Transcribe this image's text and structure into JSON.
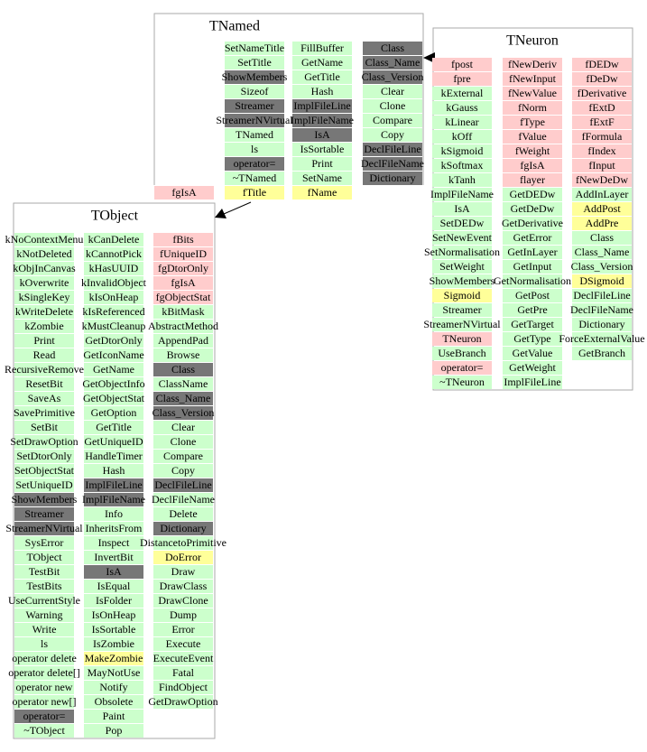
{
  "classes": [
    {
      "name": "TNamed",
      "columns": [
        [
          {
            "color": "#ccffcc",
            "items": [
              "SetNameTitle",
              "SetTitle"
            ]
          },
          {
            "color": "#777777",
            "items": [
              "ShowMembers"
            ]
          },
          {
            "color": "#ccffcc",
            "items": [
              "Sizeof"
            ]
          },
          {
            "color": "#777777",
            "items": [
              "Streamer",
              "StreamerNVirtual"
            ]
          },
          {
            "color": "#ccffcc",
            "items": [
              "TNamed",
              "ls"
            ]
          },
          {
            "color": "#777777",
            "items": [
              "operator="
            ]
          },
          {
            "color": "#ccffcc",
            "items": [
              "~TNamed"
            ]
          },
          {
            "color": "#ffff99",
            "items": [
              "fTitle"
            ]
          }
        ],
        [
          {
            "color": "#ccffcc",
            "items": [
              "FillBuffer",
              "GetName",
              "GetTitle",
              "Hash"
            ]
          },
          {
            "color": "#777777",
            "items": [
              "ImplFileLine",
              "ImplFileName",
              "IsA"
            ]
          },
          {
            "color": "#ccffcc",
            "items": [
              "IsSortable",
              "Print",
              "SetName"
            ]
          },
          {
            "color": "#ffff99",
            "items": [
              "fName"
            ]
          }
        ],
        [
          {
            "color": "#777777",
            "items": [
              "Class",
              "Class_Name",
              "Class_Version"
            ]
          },
          {
            "color": "#ccffcc",
            "items": [
              "Clear",
              "Clone",
              "Compare",
              "Copy"
            ]
          },
          {
            "color": "#777777",
            "items": [
              "DeclFileLine",
              "DeclFileName",
              "Dictionary"
            ]
          }
        ],
        [
          {
            "color": "#ffcccc",
            "items": [
              "fgIsA"
            ]
          }
        ]
      ]
    },
    {
      "name": "TNeuron",
      "columns": [
        [
          {
            "color": "#ffcccc",
            "items": [
              "fpost",
              "fpre"
            ]
          },
          {
            "color": "#ccffcc",
            "items": [
              "kExternal",
              "kGauss",
              "kLinear",
              "kOff",
              "kSigmoid",
              "kSoftmax",
              "kTanh",
              "ImplFileName",
              "IsA",
              "SetDEDw",
              "SetNewEvent",
              "SetNormalisation",
              "SetWeight",
              "ShowMembers"
            ]
          },
          {
            "color": "#ffff99",
            "items": [
              "Sigmoid"
            ]
          },
          {
            "color": "#ccffcc",
            "items": [
              "Streamer",
              "StreamerNVirtual"
            ]
          },
          {
            "color": "#ffcccc",
            "items": [
              "TNeuron"
            ]
          },
          {
            "color": "#ccffcc",
            "items": [
              "UseBranch"
            ]
          },
          {
            "color": "#ffcccc",
            "items": [
              "operator="
            ]
          },
          {
            "color": "#ccffcc",
            "items": [
              "~TNeuron"
            ]
          }
        ],
        [
          {
            "color": "#ffcccc",
            "items": [
              "fNewDeriv",
              "fNewInput",
              "fNewValue",
              "fNorm",
              "fType",
              "fValue",
              "fWeight",
              "fgIsA",
              "flayer"
            ]
          },
          {
            "color": "#ccffcc",
            "items": [
              "GetDEDw",
              "GetDeDw",
              "GetDerivative",
              "GetError",
              "GetInLayer",
              "GetInput",
              "GetNormalisation",
              "GetPost",
              "GetPre",
              "GetTarget",
              "GetType",
              "GetValue",
              "GetWeight",
              "ImplFileLine"
            ]
          }
        ],
        [
          {
            "color": "#ffcccc",
            "items": [
              "fDEDw",
              "fDeDw",
              "fDerivative",
              "fExtD",
              "fExtF",
              "fFormula",
              "fIndex",
              "fInput",
              "fNewDeDw"
            ]
          },
          {
            "color": "#ccffcc",
            "items": [
              "AddInLayer"
            ]
          },
          {
            "color": "#ffff99",
            "items": [
              "AddPost",
              "AddPre"
            ]
          },
          {
            "color": "#ccffcc",
            "items": [
              "Class",
              "Class_Name",
              "Class_Version"
            ]
          },
          {
            "color": "#ffff99",
            "items": [
              "DSigmoid"
            ]
          },
          {
            "color": "#ccffcc",
            "items": [
              "DeclFileLine",
              "DeclFileName",
              "Dictionary",
              "ForceExternalValue",
              "GetBranch"
            ]
          }
        ]
      ]
    },
    {
      "name": "TObject",
      "columns": [
        [
          {
            "color": "#ccffcc",
            "items": [
              "kNoContextMenu",
              "kNotDeleted",
              "kObjInCanvas",
              "kOverwrite",
              "kSingleKey",
              "kWriteDelete",
              "kZombie",
              "Print",
              "Read",
              "RecursiveRemove",
              "ResetBit",
              "SaveAs",
              "SavePrimitive",
              "SetBit",
              "SetDrawOption",
              "SetDtorOnly",
              "SetObjectStat",
              "SetUniqueID"
            ]
          },
          {
            "color": "#777777",
            "items": [
              "ShowMembers",
              "Streamer",
              "StreamerNVirtual"
            ]
          },
          {
            "color": "#ccffcc",
            "items": [
              "SysError",
              "TObject",
              "TestBit",
              "TestBits",
              "UseCurrentStyle",
              "Warning",
              "Write",
              "ls",
              "operator delete",
              "operator delete[]",
              "operator new",
              "operator new[]"
            ]
          },
          {
            "color": "#777777",
            "items": [
              "operator="
            ]
          },
          {
            "color": "#ccffcc",
            "items": [
              "~TObject"
            ]
          }
        ],
        [
          {
            "color": "#ccffcc",
            "items": [
              "kCanDelete",
              "kCannotPick",
              "kHasUUID",
              "kInvalidObject",
              "kIsOnHeap",
              "kIsReferenced",
              "kMustCleanup",
              "GetDtorOnly",
              "GetIconName",
              "GetName",
              "GetObjectInfo",
              "GetObjectStat",
              "GetOption",
              "GetTitle",
              "GetUniqueID",
              "HandleTimer",
              "Hash"
            ]
          },
          {
            "color": "#777777",
            "items": [
              "ImplFileLine",
              "ImplFileName"
            ]
          },
          {
            "color": "#ccffcc",
            "items": [
              "Info",
              "InheritsFrom",
              "Inspect",
              "InvertBit"
            ]
          },
          {
            "color": "#777777",
            "items": [
              "IsA"
            ]
          },
          {
            "color": "#ccffcc",
            "items": [
              "IsEqual",
              "IsFolder",
              "IsOnHeap",
              "IsSortable",
              "IsZombie"
            ]
          },
          {
            "color": "#ffff99",
            "items": [
              "MakeZombie"
            ]
          },
          {
            "color": "#ccffcc",
            "items": [
              "MayNotUse",
              "Notify",
              "Obsolete",
              "Paint",
              "Pop"
            ]
          }
        ],
        [
          {
            "color": "#ffcccc",
            "items": [
              "fBits",
              "fUniqueID",
              "fgDtorOnly",
              "fgIsA",
              "fgObjectStat"
            ]
          },
          {
            "color": "#ccffcc",
            "items": [
              "kBitMask",
              "AbstractMethod",
              "AppendPad",
              "Browse"
            ]
          },
          {
            "color": "#777777",
            "items": [
              "Class"
            ]
          },
          {
            "color": "#ccffcc",
            "items": [
              "ClassName"
            ]
          },
          {
            "color": "#777777",
            "items": [
              "Class_Name",
              "Class_Version"
            ]
          },
          {
            "color": "#ccffcc",
            "items": [
              "Clear",
              "Clone",
              "Compare",
              "Copy"
            ]
          },
          {
            "color": "#777777",
            "items": [
              "DeclFileLine"
            ]
          },
          {
            "color": "#ccffcc",
            "items": [
              "DeclFileName",
              "Delete"
            ]
          },
          {
            "color": "#777777",
            "items": [
              "Dictionary"
            ]
          },
          {
            "color": "#ccffcc",
            "items": [
              "DistancetoPrimitive"
            ]
          },
          {
            "color": "#ffff99",
            "items": [
              "DoError"
            ]
          },
          {
            "color": "#ccffcc",
            "items": [
              "Draw",
              "DrawClass",
              "DrawClone",
              "Dump",
              "Error",
              "Execute",
              "ExecuteEvent",
              "Fatal",
              "FindObject",
              "GetDrawOption"
            ]
          }
        ]
      ]
    }
  ]
}
